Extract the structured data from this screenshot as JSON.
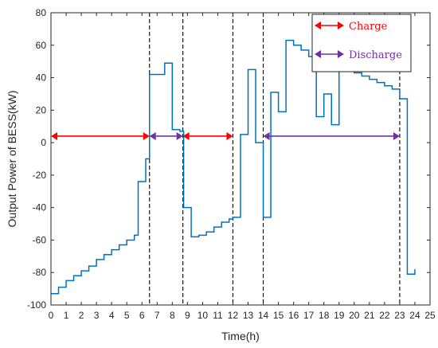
{
  "chart_data": {
    "type": "line",
    "xlabel": "Time(h)",
    "ylabel": "Output Power of BESS(kW)",
    "xlim": [
      0,
      25
    ],
    "ylim": [
      -100,
      80
    ],
    "xticks": [
      "0",
      "1",
      "2",
      "3",
      "4",
      "5",
      "6",
      "7",
      "8",
      "9",
      "10",
      "11",
      "12",
      "13",
      "14",
      "15",
      "16",
      "17",
      "18",
      "19",
      "20",
      "21",
      "22",
      "23",
      "24",
      "25"
    ],
    "yticks": [
      "-100",
      "-80",
      "-60",
      "-40",
      "-20",
      "0",
      "20",
      "40",
      "60",
      "80"
    ],
    "grid": false,
    "legend_position": "top-right",
    "legend": [
      {
        "label": "Charge",
        "arrow_color": "#ff0000",
        "text_color": "#ff0000"
      },
      {
        "label": "Discharge",
        "arrow_color": "#7030a0",
        "text_color": "#7030a0"
      }
    ],
    "vlines": [
      6.5,
      8.7,
      12.0,
      14.0,
      23.0
    ],
    "arrows": [
      {
        "x0": 0,
        "x1": 6.5,
        "y": 4,
        "color": "#ff0000"
      },
      {
        "x0": 6.5,
        "x1": 8.7,
        "y": 4,
        "color": "#7030a0"
      },
      {
        "x0": 8.7,
        "x1": 12.0,
        "y": 4,
        "color": "#ff0000"
      },
      {
        "x0": 14.0,
        "x1": 23.0,
        "y": 4,
        "color": "#7030a0"
      }
    ],
    "series": [
      {
        "color": "#0072bd",
        "type": "step",
        "x": [
          0,
          0.5,
          1.0,
          1.5,
          2.0,
          2.5,
          3.0,
          3.5,
          4.0,
          4.5,
          5.0,
          5.5,
          5.75,
          6.25,
          6.5,
          7.0,
          7.5,
          8.0,
          8.5,
          8.75,
          9.25,
          9.75,
          10.25,
          10.75,
          11.25,
          11.75,
          12.0,
          12.5,
          13.0,
          13.5,
          14.0,
          14.5,
          15.0,
          15.5,
          16.0,
          16.5,
          17.0,
          17.5,
          18.0,
          18.5,
          19.0,
          19.5,
          20.0,
          20.5,
          21.0,
          21.5,
          22.0,
          22.5,
          23.0,
          23.5,
          24.0
        ],
        "y": [
          -93,
          -89,
          -85,
          -82,
          -79,
          -76,
          -72,
          -69,
          -66,
          -63,
          -60,
          -57,
          -24,
          -10,
          42,
          42,
          49,
          8,
          7,
          -40,
          -58,
          -57,
          -55,
          -52,
          -49,
          -47,
          -46,
          5,
          45,
          0,
          -46,
          31,
          19,
          63,
          60,
          57,
          53,
          16,
          30,
          11,
          47,
          45,
          43,
          41,
          39,
          37,
          35,
          33,
          27,
          -81,
          -78
        ]
      }
    ]
  }
}
